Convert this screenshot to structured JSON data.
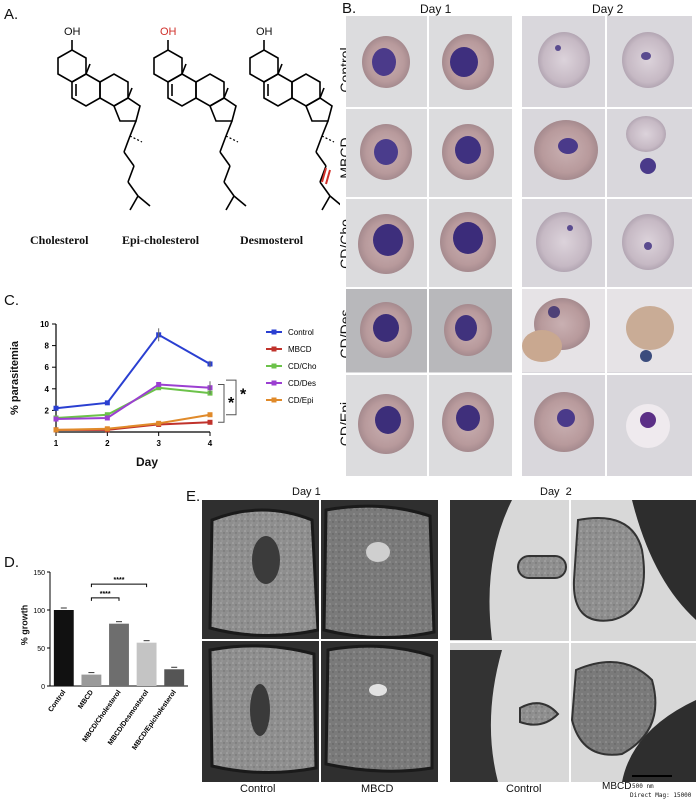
{
  "panels": {
    "A": "A.",
    "B": "B.",
    "C": "C.",
    "D": "D.",
    "E": "E."
  },
  "panel_a": {
    "molecules": [
      {
        "label": "Cholesterol",
        "oh": "OH",
        "highlight": "#000000"
      },
      {
        "label": "Epi-cholesterol",
        "oh": "OH",
        "highlight": "#d0302a"
      },
      {
        "label": "Desmosterol",
        "oh": "OH",
        "highlight": "#d0302a"
      }
    ]
  },
  "panel_b": {
    "columns": [
      "Day 1",
      "Day 2"
    ],
    "rows": [
      "Control",
      "MBCD",
      "CD/Cho",
      "CD/Des",
      "CD/Epi"
    ]
  },
  "panel_e": {
    "columns": [
      "Day 1",
      "Day  2"
    ],
    "bottom_labels": [
      "Control",
      "MBCD",
      "Control",
      "MBCD"
    ],
    "scale_bar": "500 nm",
    "mag_text": "Direct Mag: 15000"
  },
  "chart_c": {
    "type": "line",
    "ylabel": "% parasitemia",
    "xlabel": "Day",
    "x": [
      1,
      2,
      3,
      4
    ],
    "ylim": [
      0,
      10
    ],
    "yticks": [
      2,
      4,
      6,
      8,
      10
    ],
    "significance": [
      "*",
      "*"
    ],
    "series": [
      {
        "name": "Control",
        "color": "#2a3fd1",
        "values": [
          2.2,
          2.7,
          9.0,
          6.3
        ]
      },
      {
        "name": "MBCD",
        "color": "#c0322b",
        "values": [
          0.2,
          0.2,
          0.7,
          0.9
        ]
      },
      {
        "name": "CD/Cho",
        "color": "#6cc24a",
        "values": [
          1.3,
          1.6,
          4.1,
          3.6
        ]
      },
      {
        "name": "CD/Des",
        "color": "#9b3fd1",
        "values": [
          1.2,
          1.3,
          4.4,
          4.1
        ]
      },
      {
        "name": "CD/Epi",
        "color": "#e08a2a",
        "values": [
          0.2,
          0.3,
          0.8,
          1.6
        ]
      }
    ]
  },
  "chart_d": {
    "type": "bar",
    "ylabel": "% growth",
    "ylim": [
      0,
      150
    ],
    "yticks": [
      0,
      50,
      100,
      150
    ],
    "categories": [
      "Control",
      "MBCD",
      "MBCD/Cholesterol",
      "MBCD/Desmosterol",
      "MBCD/Epicholesterol"
    ],
    "values": [
      100,
      15,
      82,
      57,
      22
    ],
    "colors": [
      "#111111",
      "#9a9a9a",
      "#6e6e6e",
      "#c4c4c4",
      "#555555"
    ],
    "significance": [
      "****",
      "****"
    ]
  }
}
